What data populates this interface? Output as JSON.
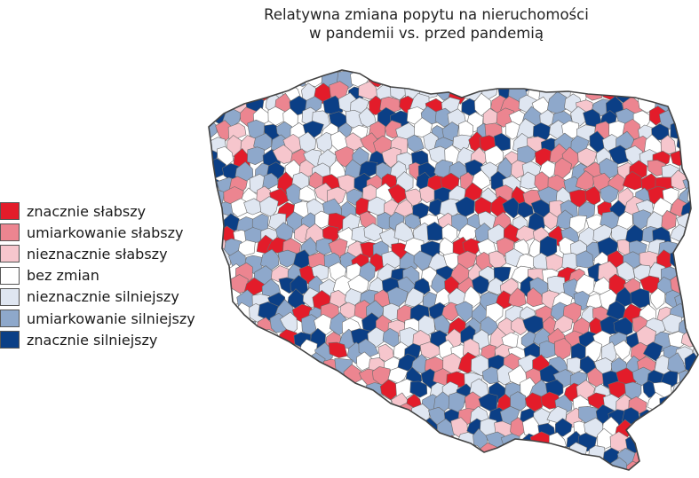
{
  "title": {
    "line1": "Relatywna zmiana popytu na nieruchomości",
    "line2": "w pandemii vs. przed pandemią"
  },
  "legend": {
    "items": [
      {
        "label": "znacznie słabszy",
        "color": "#e31c2a"
      },
      {
        "label": "umiarkowanie słabszy",
        "color": "#ec8590"
      },
      {
        "label": "nieznacznie słabszy",
        "color": "#f6c6cd"
      },
      {
        "label": "bez zmian",
        "color": "#ffffff"
      },
      {
        "label": "nieznacznie silniejszy",
        "color": "#dfe6f1"
      },
      {
        "label": "umiarkowanie silniejszy",
        "color": "#8ea8cb"
      },
      {
        "label": "znacznie silniejszy",
        "color": "#0b3f86"
      }
    ]
  }
}
